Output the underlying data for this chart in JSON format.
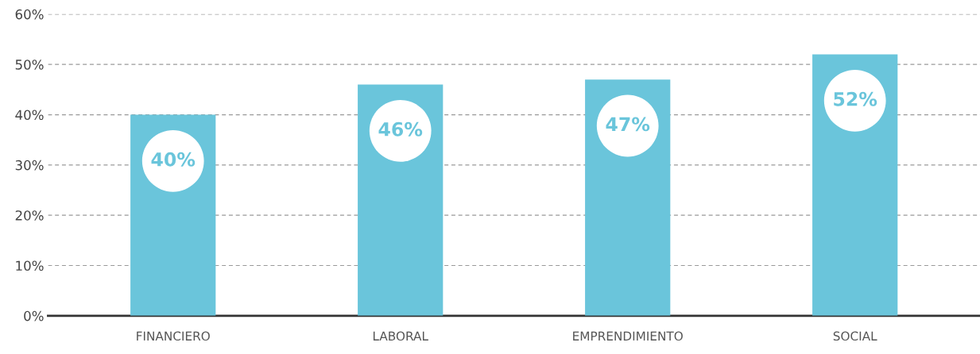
{
  "chart_data": {
    "type": "bar",
    "categories": [
      "FINANCIERO",
      "LABORAL",
      "EMPRENDIMIENTO",
      "SOCIAL"
    ],
    "values": [
      40,
      46,
      47,
      52
    ],
    "value_labels": [
      "40%",
      "46%",
      "47%",
      "52%"
    ],
    "color": "#6ac5db",
    "ylim": [
      0,
      60
    ],
    "yticks": [
      {
        "value": 0,
        "label": "0%"
      },
      {
        "value": 10,
        "label": "10%"
      },
      {
        "value": 20,
        "label": "20%"
      },
      {
        "value": 30,
        "label": "30%"
      },
      {
        "value": 40,
        "label": "40%"
      },
      {
        "value": 50,
        "label": "50%"
      },
      {
        "value": 60,
        "label": "60%"
      }
    ],
    "grid": "y",
    "line_style": "dashed"
  }
}
